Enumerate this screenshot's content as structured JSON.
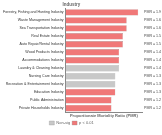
{
  "chart_data": {
    "type": "bar",
    "title": "Industry",
    "x_label": "Proportionate Mortality Ratio (PMR)",
    "orientation": "horizontal",
    "categories": [
      "Forestry, Fishing and Hunting Industry",
      "Waste Management Industry",
      "Sea Transportation Industry",
      "Real Estate Industry",
      "Auto Repair/Rental Industry",
      "Wood Products Industry",
      "Accommodations Industry",
      "Laundry & Cleaning Industry",
      "Nursing Care Industry",
      "Recreation & Entertainment Industry",
      "Education Industry",
      "Public Administration",
      "Private Households Industry"
    ],
    "series": [
      {
        "name": "Non-sig",
        "color": "#c8c8c8",
        "values": [
          null,
          null,
          null,
          null,
          null,
          null,
          null,
          1.4,
          1.3,
          1.3,
          null,
          null,
          null
        ],
        "value_labels": [
          null,
          null,
          null,
          null,
          null,
          null,
          null,
          "PMR = 1.4",
          "PMR = 1.3",
          "PMR = 1.3",
          null,
          null,
          null
        ]
      },
      {
        "name": "p < 0.01",
        "color": "#f07878",
        "values": [
          1.9,
          1.6,
          1.6,
          1.5,
          1.5,
          1.4,
          1.4,
          null,
          null,
          null,
          1.3,
          1.2,
          1.2
        ],
        "value_labels": [
          "PMR = 1.9",
          "PMR = 1.6",
          "PMR = 1.6",
          "PMR = 1.5",
          "PMR = 1.5",
          "PMR = 1.4",
          "PMR = 1.4",
          null,
          null,
          null,
          "PMR = 1.3",
          "PMR = 1.2",
          "PMR = 1.2"
        ]
      }
    ],
    "xlim": [
      0,
      2
    ],
    "tick_labels": "y",
    "grid": false,
    "legend": "bottom",
    "data_labels": true
  }
}
